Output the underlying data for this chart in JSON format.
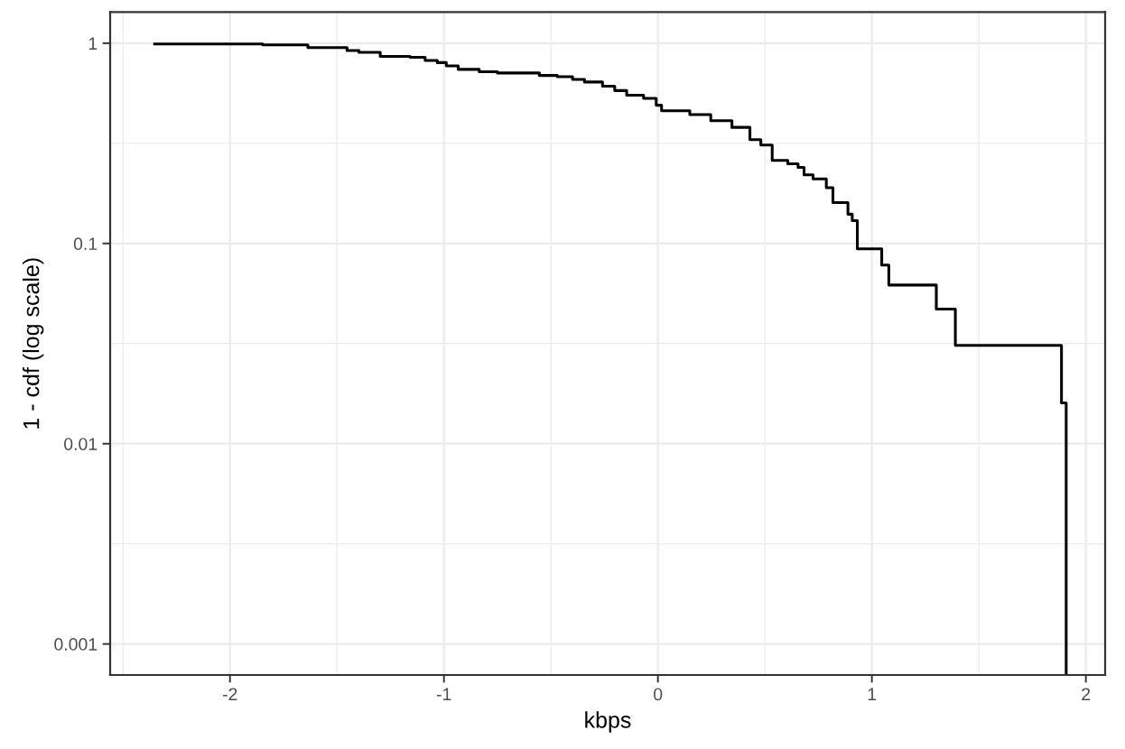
{
  "chart_data": {
    "type": "step",
    "xlabel": "kbps",
    "ylabel": "1 - cdf (log scale)",
    "log": "y",
    "color": "#000000",
    "line_style": "solid",
    "grid": true,
    "x": [
      -2.352,
      -1.847,
      -1.636,
      -1.453,
      -1.397,
      -1.298,
      -1.158,
      -1.088,
      -1.031,
      -0.989,
      -0.933,
      -0.835,
      -0.75,
      -0.554,
      -0.47,
      -0.399,
      -0.343,
      -0.259,
      -0.202,
      -0.146,
      -0.067,
      -0.008,
      0.017,
      0.149,
      0.247,
      0.346,
      0.43,
      0.481,
      0.534,
      0.607,
      0.655,
      0.683,
      0.725,
      0.787,
      0.818,
      0.888,
      0.908,
      0.932,
      1.046,
      1.079,
      1.301,
      1.39,
      1.886,
      1.908
    ],
    "values": [
      0.99,
      0.98,
      0.95,
      0.92,
      0.9,
      0.86,
      0.85,
      0.82,
      0.8,
      0.77,
      0.74,
      0.72,
      0.71,
      0.69,
      0.68,
      0.66,
      0.64,
      0.61,
      0.58,
      0.55,
      0.53,
      0.49,
      0.46,
      0.44,
      0.41,
      0.38,
      0.33,
      0.31,
      0.26,
      0.25,
      0.24,
      0.22,
      0.21,
      0.19,
      0.16,
      0.14,
      0.13,
      0.094,
      0.078,
      0.062,
      0.047,
      0.031,
      0.016,
      0.0007
    ],
    "xlim": [
      -2.56,
      2.09
    ],
    "ylim": [
      0.0007,
      1.43
    ],
    "xticks": [
      -2,
      -1,
      0,
      1,
      2
    ],
    "yticks": [
      0.001,
      0.01,
      0.1,
      1
    ]
  }
}
